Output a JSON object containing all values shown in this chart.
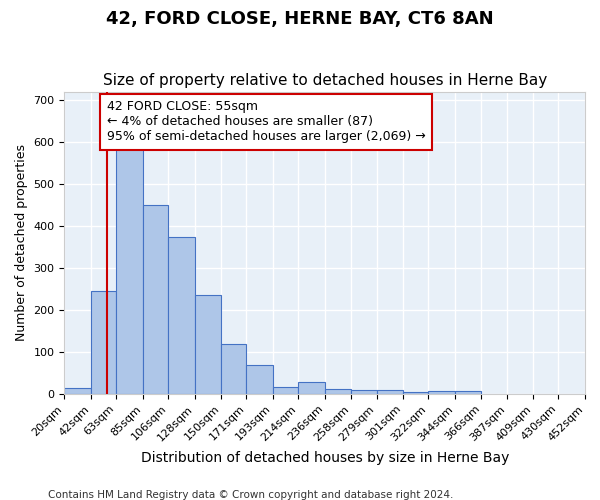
{
  "title1": "42, FORD CLOSE, HERNE BAY, CT6 8AN",
  "title2": "Size of property relative to detached houses in Herne Bay",
  "xlabel": "Distribution of detached houses by size in Herne Bay",
  "ylabel": "Number of detached properties",
  "bar_values": [
    15,
    245,
    585,
    450,
    375,
    235,
    120,
    68,
    17,
    28,
    12,
    10,
    10,
    5,
    8,
    7
  ],
  "bin_labels": [
    "20sqm",
    "42sqm",
    "63sqm",
    "85sqm",
    "106sqm",
    "128sqm",
    "150sqm",
    "171sqm",
    "193sqm",
    "214sqm",
    "236sqm",
    "258sqm",
    "279sqm",
    "301sqm",
    "322sqm",
    "344sqm",
    "366sqm",
    "387sqm",
    "409sqm",
    "430sqm",
    "452sqm"
  ],
  "bar_left_edges": [
    20,
    42,
    63,
    85,
    106,
    128,
    150,
    171,
    193,
    214,
    236,
    258,
    279,
    301,
    322,
    344
  ],
  "bar_widths": [
    22,
    21,
    22,
    21,
    22,
    22,
    21,
    22,
    21,
    22,
    22,
    21,
    22,
    21,
    22,
    22
  ],
  "bar_color": "#aec6e8",
  "bar_edge_color": "#4472c4",
  "vline_x": 55,
  "vline_color": "#cc0000",
  "annotation_text": "42 FORD CLOSE: 55sqm\n← 4% of detached houses are smaller (87)\n95% of semi-detached houses are larger (2,069) →",
  "annotation_box_color": "#ffffff",
  "annotation_box_edge": "#cc0000",
  "ylim": [
    0,
    720
  ],
  "yticks": [
    0,
    100,
    200,
    300,
    400,
    500,
    600,
    700
  ],
  "bg_color": "#e8f0f8",
  "grid_color": "#ffffff",
  "footnote1": "Contains HM Land Registry data © Crown copyright and database right 2024.",
  "title1_fontsize": 13,
  "title2_fontsize": 11,
  "xlabel_fontsize": 10,
  "ylabel_fontsize": 9,
  "tick_fontsize": 8,
  "annotation_fontsize": 9,
  "footnote_fontsize": 7.5,
  "xlim_min": 20,
  "xlim_max": 452
}
